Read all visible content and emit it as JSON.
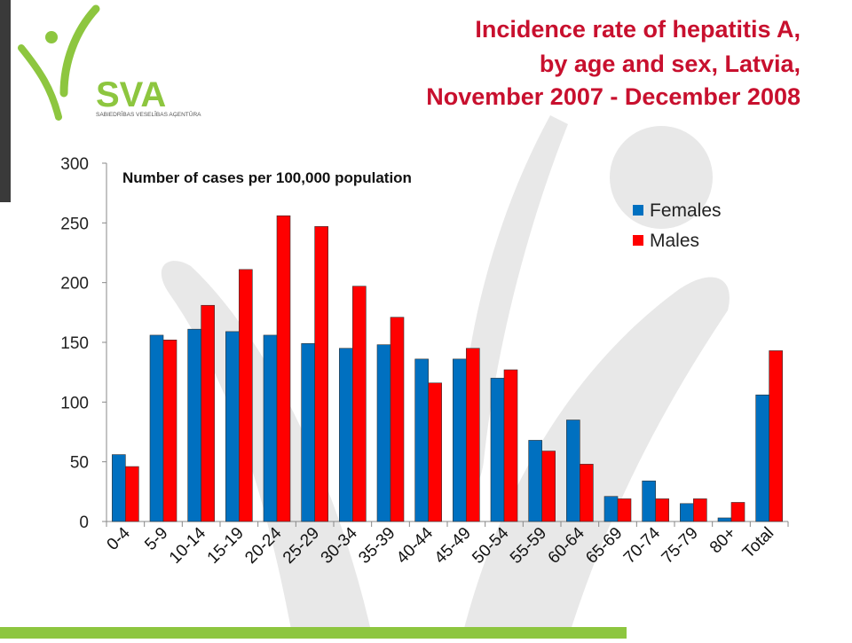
{
  "title_lines": [
    "Incidence rate of hepatitis A,",
    "by age and sex, Latvia,",
    "November 2007 - December 2008"
  ],
  "logo": {
    "wordmark": "SVA",
    "subtitle": "SABIEDRĪBAS VESELĪBAS AĢENTŪRA",
    "color": "#8dc63f"
  },
  "colors": {
    "title": "#c8102e",
    "females": "#0070c0",
    "males": "#ff0000",
    "accent_green": "#8dc63f",
    "watermark": "#e6e6e6"
  },
  "chart_data": {
    "type": "bar",
    "title": "",
    "xlabel": "",
    "ylabel": "",
    "annotation": "Number of cases per 100,000 population",
    "ylim": [
      0,
      300
    ],
    "yticks": [
      0,
      50,
      100,
      150,
      200,
      250,
      300
    ],
    "grid": false,
    "legend_position": "top-right",
    "categories": [
      "0-4",
      "5-9",
      "10-14",
      "15-19",
      "20-24",
      "25-29",
      "30-34",
      "35-39",
      "40-44",
      "45-49",
      "50-54",
      "55-59",
      "60-64",
      "65-69",
      "70-74",
      "75-79",
      "80+",
      "Total"
    ],
    "series": [
      {
        "name": "Females",
        "color": "#0070c0",
        "values": [
          56,
          156,
          161,
          159,
          156,
          149,
          145,
          148,
          136,
          136,
          120,
          68,
          85,
          21,
          34,
          15,
          3,
          106
        ]
      },
      {
        "name": "Males",
        "color": "#ff0000",
        "values": [
          46,
          152,
          181,
          211,
          256,
          247,
          197,
          171,
          116,
          145,
          127,
          59,
          48,
          19,
          19,
          19,
          16,
          143
        ]
      }
    ]
  }
}
